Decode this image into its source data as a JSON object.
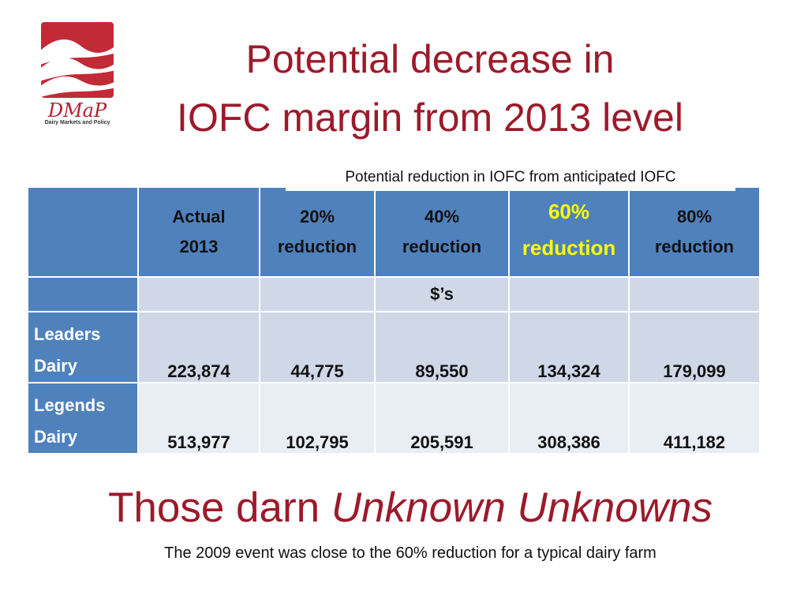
{
  "logo": {
    "text": "DMaP",
    "subtitle": "Dairy Markets and Policy"
  },
  "title": {
    "line1": "Potential decrease in",
    "line2": "IOFC margin from 2013 level"
  },
  "subheader": "Potential reduction in IOFC from anticipated IOFC",
  "table": {
    "headers": [
      {
        "line1": "",
        "line2": ""
      },
      {
        "line1": "Actual",
        "line2": "2013"
      },
      {
        "line1": "20%",
        "line2": "reduction"
      },
      {
        "line1": "40%",
        "line2": "reduction"
      },
      {
        "line1": "60%",
        "line2": "reduction"
      },
      {
        "line1": "80%",
        "line2": "reduction"
      }
    ],
    "units": "$’s",
    "rows": [
      {
        "name1": "Leaders",
        "name2": "Dairy",
        "values": [
          "223,874",
          "44,775",
          "89,550",
          "134,324",
          "179,099"
        ]
      },
      {
        "name1": "Legends",
        "name2": "Dairy",
        "values": [
          "513,977",
          "102,795",
          "205,591",
          "308,386",
          "411,182"
        ]
      }
    ]
  },
  "tagline": {
    "plain": "Those darn ",
    "italic": "Unknown Unknowns"
  },
  "note": "The 2009 event was close to the 60% reduction for a typical dairy farm",
  "colors": {
    "title": "#9c1a2a",
    "header_bg": "#4f81bd",
    "highlight": "#ffff00",
    "row_bg": "#d0d8e8",
    "logo_bg": "#c22a36"
  }
}
